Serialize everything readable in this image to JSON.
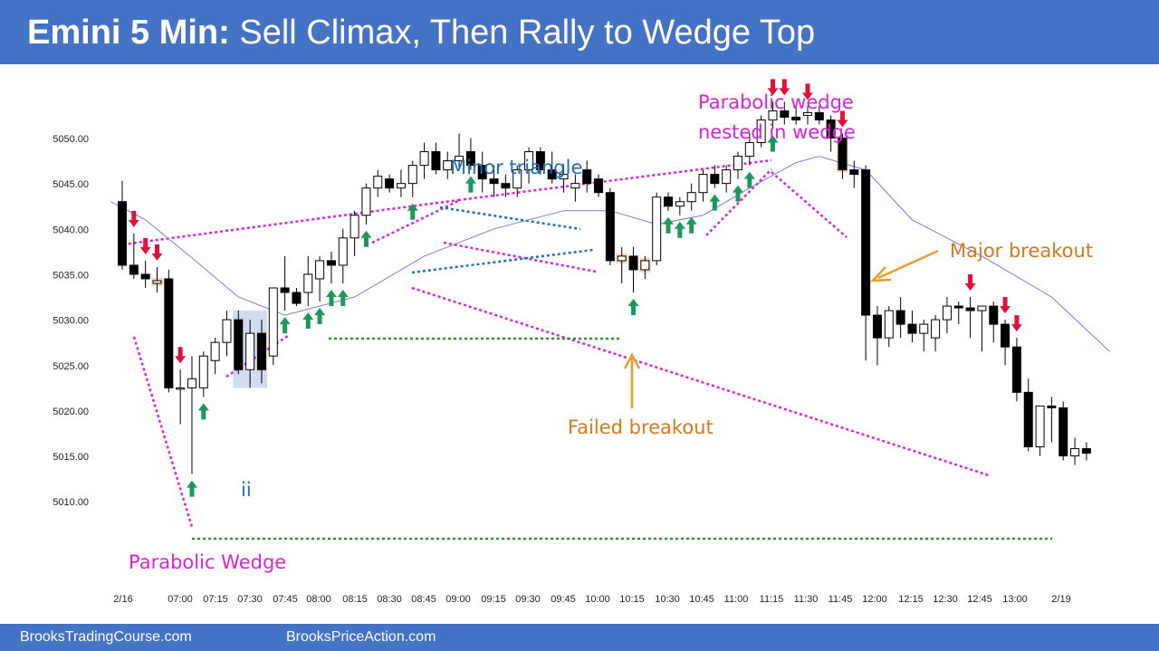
{
  "header": {
    "title_bold": "Emini 5 Min:",
    "title_rest": "Sell Climax, Then Rally to Wedge Top"
  },
  "footer": {
    "links": [
      "BrooksTradingCourse.com",
      "BrooksPriceAction.com"
    ]
  },
  "chart_data": {
    "type": "candlestick",
    "y_ticks": [
      "5050.00",
      "5045.00",
      "5040.00",
      "5035.00",
      "5030.00",
      "5025.00",
      "5020.00",
      "5015.00",
      "5010.00"
    ],
    "ylim": [
      5008,
      5058
    ],
    "x_ticks": [
      "2/16",
      "07:00",
      "07:15",
      "07:30",
      "07:45",
      "08:00",
      "08:15",
      "08:30",
      "08:45",
      "09:00",
      "09:15",
      "09:30",
      "09:45",
      "10:00",
      "10:15",
      "10:30",
      "10:45",
      "11:00",
      "11:15",
      "11:30",
      "11:45",
      "12:00",
      "12:15",
      "12:30",
      "12:45",
      "13:00",
      "2/19"
    ],
    "bars": [
      [
        5043.0,
        5045.3,
        5035.5,
        5036.0
      ],
      [
        5036.0,
        5039.5,
        5034.5,
        5035.0
      ],
      [
        5035.0,
        5036.5,
        5033.5,
        5034.5
      ],
      [
        5034.0,
        5035.8,
        5033.0,
        5034.3
      ],
      [
        5034.5,
        5035.5,
        5022.0,
        5022.5
      ],
      [
        5022.5,
        5024.5,
        5018.5,
        5022.5
      ],
      [
        5022.5,
        5026.0,
        5013.0,
        5023.5
      ],
      [
        5022.5,
        5026.5,
        5021.5,
        5026.0
      ],
      [
        5025.5,
        5028.0,
        5024.0,
        5027.5
      ],
      [
        5027.5,
        5031.0,
        5026.0,
        5030.0
      ],
      [
        5030.0,
        5031.0,
        5024.0,
        5024.5
      ],
      [
        5024.5,
        5030.0,
        5022.5,
        5028.5
      ],
      [
        5028.5,
        5030.0,
        5023.0,
        5024.5
      ],
      [
        5026.0,
        5032.5,
        5025.0,
        5033.5
      ],
      [
        5033.5,
        5037.0,
        5031.0,
        5033.0
      ],
      [
        5033.0,
        5033.5,
        5031.5,
        5031.8
      ],
      [
        5033.0,
        5037.0,
        5031.5,
        5035.0
      ],
      [
        5034.5,
        5037.0,
        5032.0,
        5036.5
      ],
      [
        5036.5,
        5037.5,
        5034.0,
        5036.0
      ],
      [
        5036.0,
        5040.0,
        5034.0,
        5039.0
      ],
      [
        5039.0,
        5042.0,
        5037.0,
        5041.5
      ],
      [
        5041.5,
        5045.0,
        5040.5,
        5044.5
      ],
      [
        5044.5,
        5046.5,
        5043.5,
        5045.8
      ],
      [
        5045.5,
        5046.0,
        5044.0,
        5044.5
      ],
      [
        5044.5,
        5046.5,
        5043.5,
        5045.0
      ],
      [
        5045.0,
        5047.5,
        5043.5,
        5047.0
      ],
      [
        5047.0,
        5049.5,
        5045.5,
        5048.5
      ],
      [
        5048.5,
        5049.5,
        5046.0,
        5046.5
      ],
      [
        5046.5,
        5048.5,
        5045.5,
        5047.5
      ],
      [
        5047.5,
        5050.5,
        5046.5,
        5048.0
      ],
      [
        5048.5,
        5050.0,
        5046.5,
        5047.0
      ],
      [
        5047.0,
        5048.5,
        5044.0,
        5045.5
      ],
      [
        5045.5,
        5047.0,
        5043.5,
        5045.0
      ],
      [
        5045.0,
        5046.0,
        5043.5,
        5044.5
      ],
      [
        5044.5,
        5047.0,
        5043.5,
        5046.5
      ],
      [
        5046.5,
        5049.0,
        5045.0,
        5048.5
      ],
      [
        5048.5,
        5049.0,
        5046.0,
        5046.5
      ],
      [
        5046.5,
        5048.5,
        5045.0,
        5045.5
      ],
      [
        5045.5,
        5047.0,
        5044.0,
        5046.0
      ],
      [
        5044.5,
        5046.0,
        5043.0,
        5045.0
      ],
      [
        5046.5,
        5047.5,
        5044.0,
        5045.0
      ],
      [
        5045.5,
        5046.0,
        5043.5,
        5044.0
      ],
      [
        5044.0,
        5044.5,
        5036.0,
        5036.5
      ],
      [
        5036.5,
        5038.0,
        5034.0,
        5037.0
      ],
      [
        5037.0,
        5038.0,
        5033.0,
        5035.5
      ],
      [
        5035.5,
        5037.0,
        5034.5,
        5036.5
      ],
      [
        5036.5,
        5044.0,
        5036.0,
        5043.5
      ],
      [
        5043.5,
        5044.0,
        5042.0,
        5042.5
      ],
      [
        5042.5,
        5043.5,
        5041.5,
        5043.0
      ],
      [
        5043.0,
        5045.0,
        5042.0,
        5044.0
      ],
      [
        5044.0,
        5046.5,
        5043.0,
        5046.0
      ],
      [
        5046.0,
        5047.0,
        5044.5,
        5045.0
      ],
      [
        5045.0,
        5047.0,
        5044.0,
        5046.5
      ],
      [
        5046.5,
        5048.5,
        5045.5,
        5048.0
      ],
      [
        5048.0,
        5050.5,
        5047.0,
        5049.5
      ],
      [
        5049.5,
        5052.5,
        5049.0,
        5052.0
      ],
      [
        5052.0,
        5054.0,
        5051.0,
        5053.0
      ],
      [
        5053.0,
        5054.0,
        5051.5,
        5052.3
      ],
      [
        5052.3,
        5053.5,
        5051.5,
        5052.0
      ],
      [
        5052.5,
        5053.5,
        5051.5,
        5052.8
      ],
      [
        5052.8,
        5053.5,
        5051.5,
        5052.0
      ],
      [
        5052.0,
        5052.5,
        5048.5,
        5050.0
      ],
      [
        5050.0,
        5050.5,
        5045.5,
        5046.5
      ],
      [
        5046.5,
        5047.5,
        5044.5,
        5046.0
      ],
      [
        5046.5,
        5047.0,
        5025.5,
        5030.5
      ],
      [
        5030.5,
        5031.5,
        5025.0,
        5028.0
      ],
      [
        5028.0,
        5031.5,
        5027.0,
        5031.0
      ],
      [
        5031.0,
        5032.5,
        5028.0,
        5029.5
      ],
      [
        5029.5,
        5031.0,
        5027.5,
        5028.5
      ],
      [
        5028.5,
        5030.0,
        5026.5,
        5029.5
      ],
      [
        5028.0,
        5030.5,
        5026.5,
        5030.0
      ],
      [
        5030.0,
        5032.5,
        5028.5,
        5031.5
      ],
      [
        5031.5,
        5032.0,
        5029.5,
        5031.3
      ],
      [
        5031.3,
        5032.5,
        5028.0,
        5031.0
      ],
      [
        5031.0,
        5031.5,
        5026.5,
        5031.5
      ],
      [
        5031.5,
        5032.0,
        5027.5,
        5029.5
      ],
      [
        5029.5,
        5030.0,
        5025.0,
        5027.0
      ],
      [
        5027.0,
        5028.0,
        5021.0,
        5022.0
      ],
      [
        5022.0,
        5023.5,
        5015.5,
        5016.0
      ],
      [
        5016.0,
        5020.5,
        5015.0,
        5020.5
      ],
      [
        5020.5,
        5021.5,
        5016.5,
        5020.3
      ],
      [
        5020.3,
        5021.0,
        5014.5,
        5015.0
      ],
      [
        5015.0,
        5017.0,
        5014.0,
        5015.8
      ],
      [
        5015.8,
        5016.5,
        5014.5,
        5015.3
      ]
    ],
    "ema": [
      [
        -1,
        5043.0
      ],
      [
        2,
        5041.0
      ],
      [
        6,
        5036.8
      ],
      [
        10,
        5032.5
      ],
      [
        14,
        5030.5
      ],
      [
        20,
        5032.5
      ],
      [
        26,
        5037.0
      ],
      [
        32,
        5040.0
      ],
      [
        38,
        5042.0
      ],
      [
        42,
        5042.0
      ],
      [
        46,
        5040.5
      ],
      [
        50,
        5041.5
      ],
      [
        54,
        5044.5
      ],
      [
        58,
        5047.3
      ],
      [
        60,
        5048.0
      ],
      [
        64,
        5046.5
      ],
      [
        68,
        5041.0
      ],
      [
        74,
        5037.0
      ],
      [
        80,
        5032.5
      ],
      [
        85,
        5026.5
      ]
    ],
    "buy_arrow_bars": [
      6,
      7,
      14,
      16,
      17,
      18,
      19,
      21,
      25,
      30,
      44,
      47,
      48,
      49,
      51,
      53,
      54,
      56
    ],
    "sell_arrow_bars": [
      1,
      2,
      3,
      5,
      56,
      57,
      59,
      62,
      73,
      76,
      77
    ],
    "highlight_bars": [
      3,
      12,
      43,
      45,
      62
    ],
    "annotations": [
      {
        "text": "Minor triangle",
        "color": "#1f6fb4"
      },
      {
        "text": "Parabolic wedge",
        "color": "#e020e0"
      },
      {
        "text": "nested in wedge",
        "color": "#e020e0"
      },
      {
        "text": "Major breakout",
        "color": "#d9781d"
      },
      {
        "text": "Failed breakout",
        "color": "#d9781d"
      },
      {
        "text": "Parabolic Wedge",
        "color": "#e020e0"
      },
      {
        "text": "ii",
        "color": "#1f6fb4"
      }
    ]
  }
}
